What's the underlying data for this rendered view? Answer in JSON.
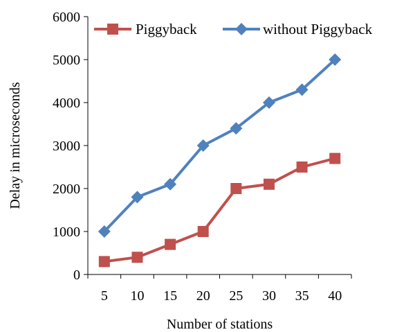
{
  "chart_data": {
    "type": "line",
    "x": [
      5,
      10,
      15,
      20,
      25,
      30,
      35,
      40
    ],
    "series": [
      {
        "name": "Piggyback",
        "values": [
          300,
          400,
          700,
          1000,
          2000,
          2100,
          2500,
          2700
        ],
        "color": "#c0504d",
        "marker": "square"
      },
      {
        "name": "without Piggyback",
        "values": [
          1000,
          1800,
          2100,
          3000,
          3400,
          4000,
          4300,
          5000
        ],
        "color": "#4f81bd",
        "marker": "diamond"
      }
    ],
    "xticks": [
      "5",
      "10",
      "15",
      "20",
      "25",
      "30",
      "35",
      "40"
    ],
    "yticks": [
      "0",
      "1000",
      "2000",
      "3000",
      "4000",
      "5000",
      "6000"
    ],
    "title": "",
    "xlabel": "Number of stations",
    "ylabel": "Delay in microseconds",
    "ylim": [
      0,
      6000
    ],
    "grid": false,
    "legend": "top"
  }
}
